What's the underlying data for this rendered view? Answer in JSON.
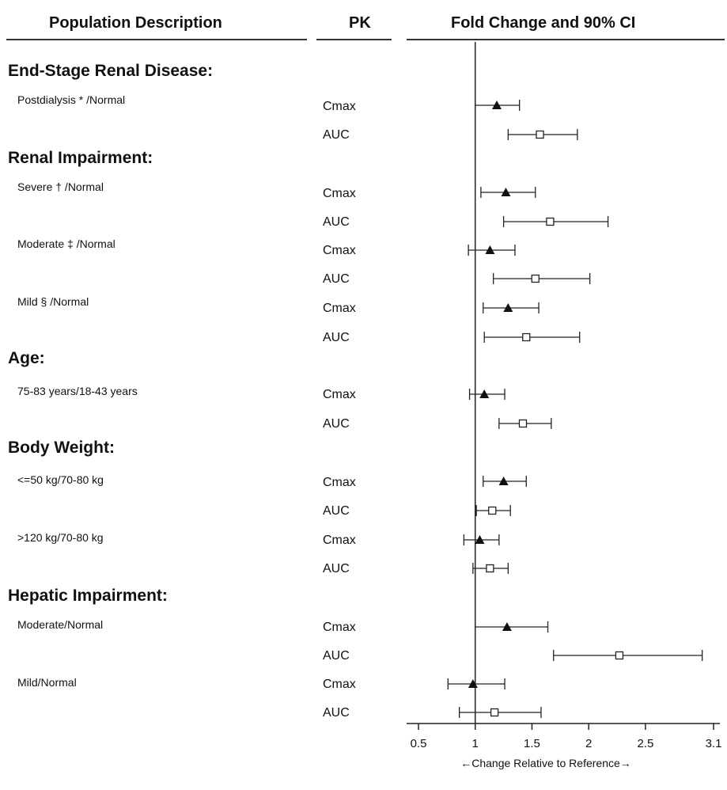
{
  "headers": {
    "population": "Population Description",
    "pk": "PK",
    "fold": "Fold Change and 90% CI"
  },
  "chart_data": {
    "type": "scatter",
    "xlabel": "←Change Relative to Reference→",
    "xlim": [
      0.5,
      3.1
    ],
    "x_ticks": [
      "0.5",
      "1",
      "1.5",
      "2",
      "2.5",
      "3.1"
    ],
    "reference_line": 1,
    "markers": {
      "Cmax": "filled-triangle",
      "AUC": "open-square"
    },
    "sections": [
      {
        "title": "End-Stage Renal Disease:",
        "rows": [
          {
            "population": "Postdialysis * /Normal",
            "pk": "Cmax",
            "estimate": 1.19,
            "lower": 1.0,
            "upper": 1.39
          },
          {
            "population": "",
            "pk": "AUC",
            "estimate": 1.57,
            "lower": 1.29,
            "upper": 1.9
          }
        ]
      },
      {
        "title": "Renal Impairment:",
        "rows": [
          {
            "population": "Severe † /Normal",
            "pk": "Cmax",
            "estimate": 1.27,
            "lower": 1.05,
            "upper": 1.53
          },
          {
            "population": "",
            "pk": "AUC",
            "estimate": 1.66,
            "lower": 1.25,
            "upper": 2.17
          },
          {
            "population": "Moderate ‡ /Normal",
            "pk": "Cmax",
            "estimate": 1.13,
            "lower": 0.94,
            "upper": 1.35
          },
          {
            "population": "",
            "pk": "AUC",
            "estimate": 1.53,
            "lower": 1.16,
            "upper": 2.01
          },
          {
            "population": "Mild § /Normal",
            "pk": "Cmax",
            "estimate": 1.29,
            "lower": 1.07,
            "upper": 1.56
          },
          {
            "population": "",
            "pk": "AUC",
            "estimate": 1.45,
            "lower": 1.08,
            "upper": 1.92
          }
        ]
      },
      {
        "title": "Age:",
        "rows": [
          {
            "population": "75-83 years/18-43 years",
            "pk": "Cmax",
            "estimate": 1.08,
            "lower": 0.95,
            "upper": 1.26
          },
          {
            "population": "",
            "pk": "AUC",
            "estimate": 1.42,
            "lower": 1.21,
            "upper": 1.67
          }
        ]
      },
      {
        "title": "Body Weight:",
        "rows": [
          {
            "population": "<=50 kg/70-80 kg",
            "pk": "Cmax",
            "estimate": 1.25,
            "lower": 1.07,
            "upper": 1.45
          },
          {
            "population": "",
            "pk": "AUC",
            "estimate": 1.15,
            "lower": 1.01,
            "upper": 1.31
          },
          {
            "population": ">120 kg/70-80 kg",
            "pk": "Cmax",
            "estimate": 1.04,
            "lower": 0.9,
            "upper": 1.21
          },
          {
            "population": "",
            "pk": "AUC",
            "estimate": 1.13,
            "lower": 0.98,
            "upper": 1.29
          }
        ]
      },
      {
        "title": "Hepatic Impairment:",
        "rows": [
          {
            "population": "Moderate/Normal",
            "pk": "Cmax",
            "estimate": 1.28,
            "lower": 1.0,
            "upper": 1.64
          },
          {
            "population": "",
            "pk": "AUC",
            "estimate": 2.27,
            "lower": 1.69,
            "upper": 3.0
          },
          {
            "population": "Mild/Normal",
            "pk": "Cmax",
            "estimate": 0.98,
            "lower": 0.76,
            "upper": 1.26
          },
          {
            "population": "",
            "pk": "AUC",
            "estimate": 1.17,
            "lower": 0.86,
            "upper": 1.58
          }
        ]
      }
    ]
  }
}
